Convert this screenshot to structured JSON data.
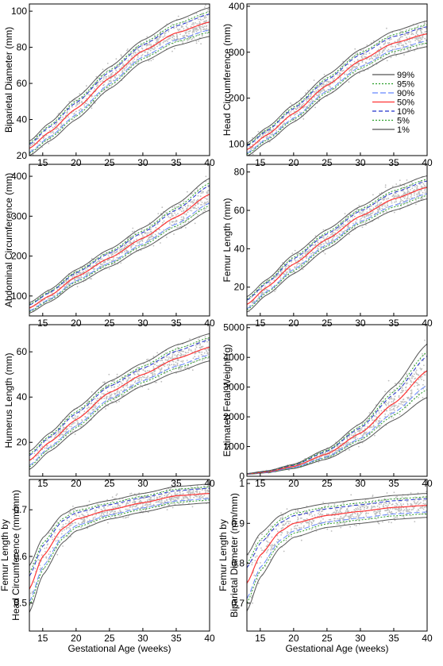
{
  "x_axis_label": "Gestational Age (weeks)",
  "legend": {
    "placement": "inside-right of Head Circumference panel",
    "entries": [
      {
        "label": "99%",
        "color": "#555555",
        "dash": "solid"
      },
      {
        "label": "95%",
        "color": "#2ca02c",
        "dash": "dotted"
      },
      {
        "label": "90%",
        "color": "#6688ff",
        "dash": "longdash"
      },
      {
        "label": "50%",
        "color": "#ff3333",
        "dash": "solid"
      },
      {
        "label": "10%",
        "color": "#2233cc",
        "dash": "dash"
      },
      {
        "label": "5%",
        "color": "#2ca02c",
        "dash": "dotted"
      },
      {
        "label": "1%",
        "color": "#555555",
        "dash": "solid"
      }
    ]
  },
  "chart_data": [
    {
      "type": "line",
      "ylabel": "Biparietal Diameter (mm)",
      "xlim": [
        13,
        40
      ],
      "ylim": [
        20,
        104
      ],
      "xticks": [
        15,
        20,
        25,
        30,
        35,
        40
      ],
      "yticks": [
        20,
        40,
        60,
        80,
        100
      ],
      "x": [
        13,
        16,
        20,
        25,
        30,
        35,
        40
      ],
      "median": [
        24,
        33,
        46,
        63,
        78,
        88,
        94
      ],
      "spread": [
        4,
        5,
        6,
        6,
        6,
        7,
        8
      ]
    },
    {
      "type": "line",
      "ylabel": "Head Circumference (mm)",
      "xlim": [
        13,
        40
      ],
      "ylim": [
        75,
        405
      ],
      "xticks": [
        15,
        20,
        25,
        30,
        35,
        40
      ],
      "yticks": [
        100,
        200,
        300,
        400
      ],
      "x": [
        13,
        16,
        20,
        25,
        30,
        35,
        40
      ],
      "median": [
        88,
        120,
        167,
        228,
        282,
        320,
        340
      ],
      "spread": [
        14,
        16,
        19,
        22,
        24,
        26,
        28
      ]
    },
    {
      "type": "line",
      "ylabel": "Abdominal Circumference (mm)",
      "xlim": [
        13,
        40
      ],
      "ylim": [
        50,
        430
      ],
      "xticks": [
        15,
        20,
        25,
        30,
        35,
        40
      ],
      "yticks": [
        100,
        200,
        300,
        400
      ],
      "x": [
        13,
        16,
        20,
        25,
        30,
        35,
        40
      ],
      "median": [
        70,
        100,
        148,
        195,
        245,
        298,
        355
      ],
      "spread": [
        13,
        15,
        18,
        22,
        26,
        32,
        40
      ]
    },
    {
      "type": "line",
      "ylabel": "Femur Length (mm)",
      "xlim": [
        13,
        40
      ],
      "ylim": [
        5,
        84
      ],
      "xticks": [
        15,
        20,
        25,
        30,
        35,
        40
      ],
      "yticks": [
        20,
        40,
        60,
        80
      ],
      "x": [
        13,
        16,
        20,
        25,
        30,
        35,
        40
      ],
      "median": [
        11,
        20,
        32,
        45,
        57,
        66,
        72
      ],
      "spread": [
        4,
        4,
        5,
        5,
        5,
        6,
        6
      ]
    },
    {
      "type": "line",
      "ylabel": "Humerus Length (mm)",
      "xlim": [
        13,
        40
      ],
      "ylim": [
        5,
        72
      ],
      "xticks": [
        15,
        20,
        25,
        30,
        35,
        40
      ],
      "yticks": [
        20,
        40,
        60
      ],
      "x": [
        13,
        16,
        20,
        25,
        30,
        35,
        40
      ],
      "median": [
        12,
        20,
        30,
        42,
        50,
        57,
        62
      ],
      "spread": [
        4,
        4,
        5,
        5,
        5,
        6,
        6
      ]
    },
    {
      "type": "line",
      "ylabel": "Estimated Fetal Weight (g)",
      "xlim": [
        13,
        40
      ],
      "ylim": [
        0,
        5100
      ],
      "xticks": [
        15,
        20,
        25,
        30,
        35,
        40
      ],
      "yticks": [
        0,
        1000,
        2000,
        3000,
        4000,
        5000
      ],
      "x": [
        13,
        16,
        20,
        25,
        30,
        35,
        40
      ],
      "median": [
        80,
        150,
        330,
        750,
        1450,
        2450,
        3550
      ],
      "spread": [
        15,
        30,
        70,
        170,
        320,
        560,
        900
      ]
    },
    {
      "type": "line",
      "ylabel": "Femur Length by Head Circumference (mm/mm)",
      "xlim": [
        13,
        40
      ],
      "ylim": [
        0.44,
        0.765
      ],
      "xticks": [
        15,
        20,
        25,
        30,
        35,
        40
      ],
      "yticks": [
        0.5,
        0.6,
        0.7
      ],
      "x": [
        13,
        15,
        18,
        20,
        25,
        30,
        35,
        40
      ],
      "median": [
        0.53,
        0.6,
        0.66,
        0.68,
        0.7,
        0.715,
        0.73,
        0.735
      ],
      "spread": [
        0.05,
        0.04,
        0.03,
        0.025,
        0.02,
        0.02,
        0.02,
        0.02
      ]
    },
    {
      "type": "line",
      "ylabel": "Femur Length by Biparietal Diameter (mm/mm)",
      "xlim": [
        13,
        40
      ],
      "ylim": [
        0.63,
        1.01
      ],
      "xticks": [
        15,
        20,
        25,
        30,
        35,
        40
      ],
      "yticks": [
        0.7,
        0.8,
        0.9,
        1.0
      ],
      "x": [
        13,
        15,
        18,
        20,
        25,
        30,
        35,
        40
      ],
      "median": [
        0.75,
        0.82,
        0.88,
        0.9,
        0.92,
        0.93,
        0.94,
        0.945
      ],
      "spread": [
        0.07,
        0.055,
        0.04,
        0.035,
        0.03,
        0.03,
        0.03,
        0.03
      ]
    }
  ]
}
